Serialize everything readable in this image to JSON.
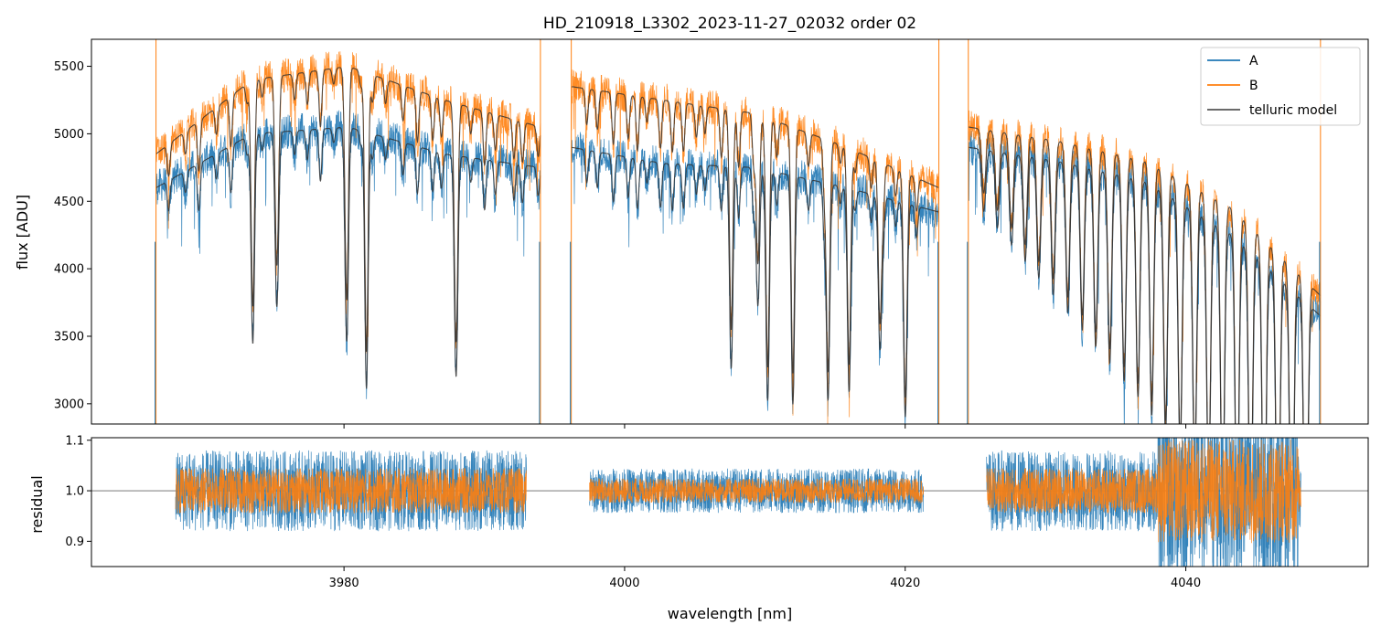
{
  "chart_data": [
    {
      "type": "line",
      "panel": "main",
      "title": "HD_210918_L3302_2023-11-27_02032  order 02",
      "xlabel": "",
      "ylabel": "flux [ADU]",
      "xlim": [
        3962,
        4053
      ],
      "ylim": [
        2850,
        5700
      ],
      "xticks": [
        3980,
        4000,
        4020,
        4040
      ],
      "xtick_labels_visible": false,
      "yticks": [
        3000,
        3500,
        4000,
        4500,
        5000,
        5500
      ],
      "ytick_labels": [
        "3000",
        "3500",
        "4000",
        "4500",
        "5000",
        "5500"
      ],
      "legend_position": "top-right",
      "legend": [
        "A",
        "B",
        "telluric model"
      ],
      "colors": {
        "A": "#1f77b4",
        "B": "#ff7f0e",
        "telluric": "#333333"
      },
      "segments": [
        {
          "range": [
            3966.6,
            3994.0
          ],
          "A_level": [
            4600,
            5000,
            5050,
            4850,
            4750
          ],
          "B_level": [
            4850,
            5400,
            5500,
            5250,
            5050
          ]
        },
        {
          "range": [
            3996.2,
            4022.4
          ],
          "A_level": [
            4900,
            4780,
            4750,
            4600,
            4420
          ],
          "B_level": [
            5350,
            5250,
            5150,
            4900,
            4600
          ]
        },
        {
          "range": [
            4024.5,
            4049.6
          ],
          "A_level": [
            4900,
            4800,
            4650,
            4250,
            3650
          ],
          "B_level": [
            5050,
            4950,
            4800,
            4450,
            3800
          ]
        }
      ],
      "series": [
        {
          "name": "A",
          "description": "order spectrum, fiber A"
        },
        {
          "name": "B",
          "description": "order spectrum, fiber B"
        },
        {
          "name": "telluric model",
          "description": "model fit to A and B"
        }
      ]
    },
    {
      "type": "line",
      "panel": "residual",
      "xlabel": "wavelength [nm]",
      "ylabel": "residual",
      "xlim": [
        3962,
        4053
      ],
      "ylim": [
        0.85,
        1.105
      ],
      "xticks": [
        3980,
        4000,
        4020,
        4040
      ],
      "xtick_labels": [
        "3980",
        "4000",
        "4020",
        "4040"
      ],
      "yticks": [
        0.9,
        1.0,
        1.1
      ],
      "ytick_labels": [
        "0.9",
        "1.0",
        "1.1"
      ],
      "reference_line": 1.0,
      "segments": [
        [
          3968.0,
          3993.0
        ],
        [
          3997.5,
          4021.3
        ],
        [
          4025.8,
          4048.2
        ]
      ],
      "series": [
        {
          "name": "A",
          "center": 1.0,
          "spread": "high"
        },
        {
          "name": "B",
          "center": 1.0,
          "spread": "medium"
        }
      ]
    }
  ]
}
